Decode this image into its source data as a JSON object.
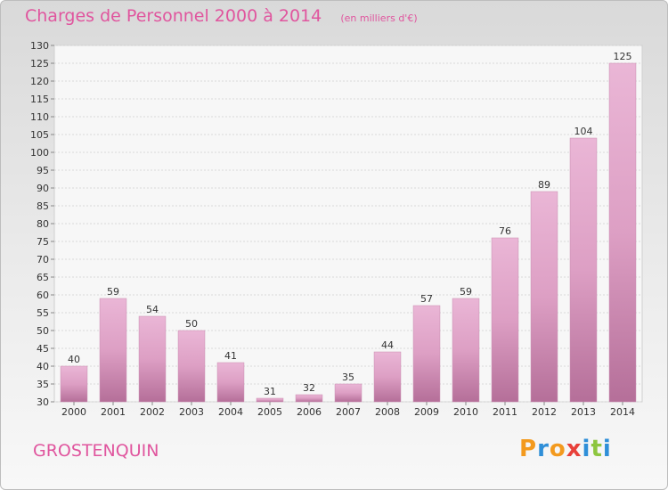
{
  "header": {
    "title": "Charges de Personnel 2000 à 2014",
    "subtitle": "(en milliers d'€)"
  },
  "footer": {
    "location": "GROSTENQUIN",
    "logo_text": "Proxiti"
  },
  "colors": {
    "accent": "#e0559e",
    "bar_light": "#eab6d6",
    "bar_mid": "#dd9fc4",
    "bar_dark": "#b56f99",
    "logo_letters": [
      "#f39a1e",
      "#2f8fd8",
      "#f39a1e",
      "#e8403a",
      "#2f8fd8",
      "#8dc63f",
      "#2f8fd8"
    ]
  },
  "chart_data": {
    "type": "bar",
    "categories": [
      "2000",
      "2001",
      "2002",
      "2003",
      "2004",
      "2005",
      "2006",
      "2007",
      "2008",
      "2009",
      "2010",
      "2011",
      "2012",
      "2013",
      "2014"
    ],
    "values": [
      40,
      59,
      54,
      50,
      41,
      31,
      32,
      35,
      44,
      57,
      59,
      76,
      89,
      104,
      125
    ],
    "title": "Charges de Personnel 2000 à 2014",
    "subtitle": "(en milliers d'€)",
    "xlabel": "",
    "ylabel": "",
    "ylim": [
      30,
      130
    ],
    "y_ticks": [
      30,
      35,
      40,
      45,
      50,
      55,
      60,
      65,
      70,
      75,
      80,
      85,
      90,
      95,
      100,
      105,
      110,
      115,
      120,
      125,
      130
    ],
    "grid": true,
    "data_labels": true
  }
}
